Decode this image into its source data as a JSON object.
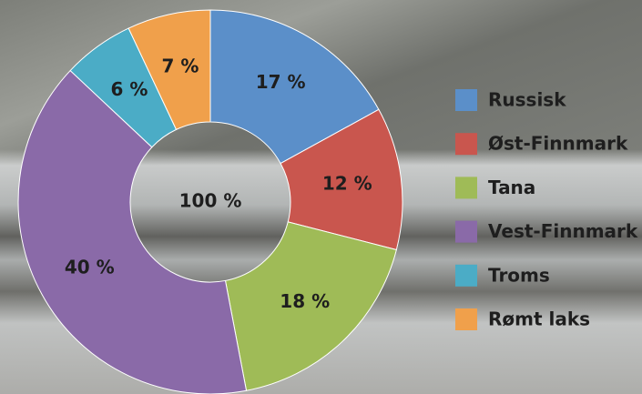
{
  "chart_data": {
    "type": "donut",
    "categories": [
      "Russisk",
      "Øst-Finnmark",
      "Tana",
      "Vest-Finnmark",
      "Troms",
      "Rømt laks"
    ],
    "values": [
      17,
      12,
      18,
      40,
      6,
      7
    ],
    "value_labels": [
      "17 %",
      "12 %",
      "18 %",
      "40 %",
      "6 %",
      "7 %"
    ],
    "colors": [
      "#5b8fc9",
      "#c9564e",
      "#9fbb57",
      "#8a6aa8",
      "#4bacc6",
      "#f0a04b"
    ],
    "center_label": "100 %",
    "legend": "right"
  }
}
